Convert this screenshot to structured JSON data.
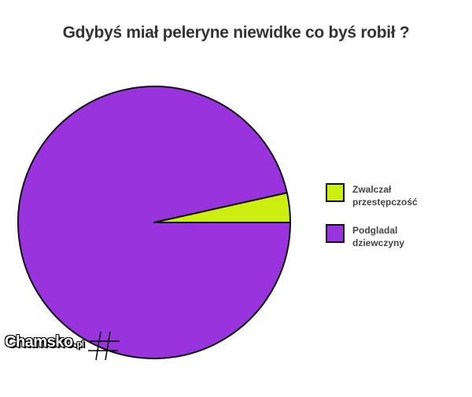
{
  "chart_data": {
    "type": "pie",
    "title": "Gdybyś miał peleryne niewidke co byś robił ?",
    "categories": [
      "Zwalczał przestępczość",
      "Podgladal dziewczyny"
    ],
    "values": [
      3.5,
      96.5
    ],
    "colors": [
      "#ccee11",
      "#9933dd"
    ],
    "start_angle": 0,
    "legend": "right"
  },
  "watermark": {
    "name": "Chamsko",
    "suffix": "pl"
  }
}
